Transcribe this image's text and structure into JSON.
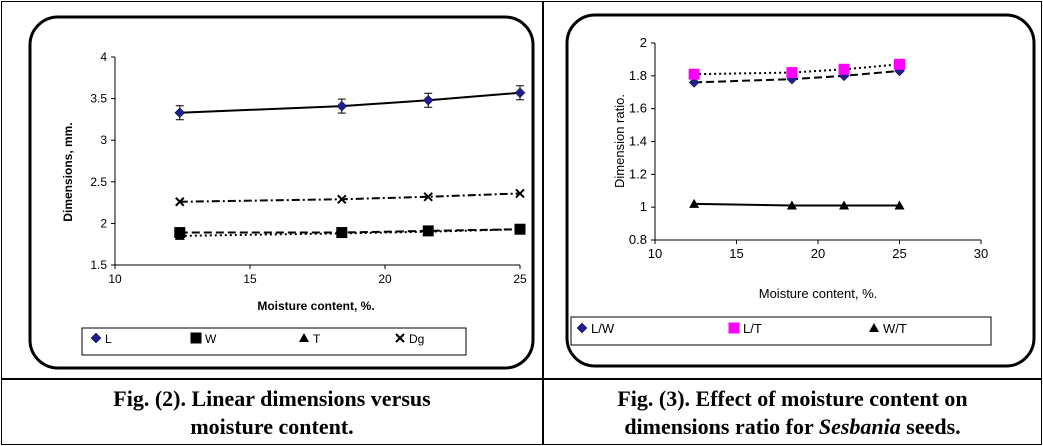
{
  "figures": [
    {
      "caption_line1": "Fig. (2). Linear dimensions versus",
      "caption_line2": "moisture content."
    },
    {
      "caption_line1": "Fig. (3). Effect of moisture content on",
      "caption_line2_pre": "dimensions ratio for ",
      "caption_line2_italic": "Sesbania",
      "caption_line2_post": " seeds."
    }
  ],
  "chart_data": [
    {
      "type": "line",
      "xlabel": "Moisture content, %.",
      "ylabel": "Dimensions, mm.",
      "xlim": [
        10,
        25
      ],
      "ylim": [
        1.5,
        4
      ],
      "xticks": [
        "10",
        "15",
        "20",
        "25"
      ],
      "yticks": [
        "1.5",
        "2",
        "2.5",
        "3",
        "3.5",
        "4"
      ],
      "x": [
        12.4,
        18.4,
        21.6,
        25.0
      ],
      "legend_position": "bottom",
      "series": [
        {
          "name": "L",
          "values": [
            3.33,
            3.41,
            3.48,
            3.57
          ],
          "marker": "diamond",
          "line": "solid",
          "error_bars": true,
          "color": "#1f1f8f"
        },
        {
          "name": "W",
          "values": [
            1.89,
            1.89,
            1.91,
            1.93
          ],
          "marker": "square",
          "line": "dash",
          "color": "#000000"
        },
        {
          "name": "T",
          "values": [
            1.85,
            1.88,
            1.9,
            1.93
          ],
          "marker": "triangle",
          "line": "dot",
          "color": "#000000"
        },
        {
          "name": "Dg",
          "values": [
            2.26,
            2.29,
            2.32,
            2.36
          ],
          "marker": "x",
          "line": "dashdot",
          "color": "#000000"
        }
      ]
    },
    {
      "type": "line",
      "xlabel": "Moisture content, %.",
      "ylabel": "Dimension ratio.",
      "xlim": [
        10,
        30
      ],
      "ylim": [
        0.8,
        2
      ],
      "xticks": [
        "10",
        "15",
        "20",
        "25",
        "30"
      ],
      "yticks": [
        "0.8",
        "1",
        "1.2",
        "1.4",
        "1.6",
        "1.8",
        "2"
      ],
      "x": [
        12.4,
        18.4,
        21.6,
        25.0
      ],
      "legend_position": "bottom",
      "series": [
        {
          "name": "L/W",
          "values": [
            1.76,
            1.78,
            1.8,
            1.83
          ],
          "marker": "diamond",
          "line": "dash",
          "color": "#1f1f8f"
        },
        {
          "name": "L/T",
          "values": [
            1.81,
            1.82,
            1.84,
            1.87
          ],
          "marker": "square",
          "line": "dot",
          "color": "#ff00ff"
        },
        {
          "name": "W/T",
          "values": [
            1.02,
            1.01,
            1.01,
            1.01
          ],
          "marker": "triangle",
          "line": "solid",
          "color": "#000000"
        }
      ]
    }
  ]
}
